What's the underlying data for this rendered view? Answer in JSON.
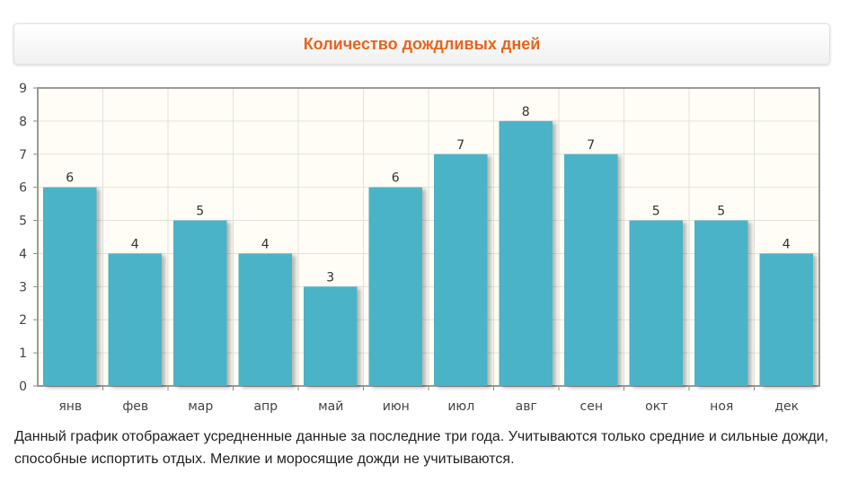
{
  "title": "Количество дождливых дней",
  "description": "Данный график отображает усредненные данные за последние три года. Учитываются только средние и сильные дожди, способные испортить отдых. Мелкие и моросящие дожди не учитываются.",
  "colors": {
    "bar": "#4bb3c8",
    "plot_bg": "#fffdf5",
    "grid": "#e2e2dc",
    "title": "#e8641e"
  },
  "chart_data": {
    "type": "bar",
    "categories": [
      "янв",
      "фев",
      "мар",
      "апр",
      "май",
      "июн",
      "июл",
      "авг",
      "сен",
      "окт",
      "ноя",
      "дек"
    ],
    "values": [
      6,
      4,
      5,
      4,
      3,
      6,
      7,
      8,
      7,
      5,
      5,
      4
    ],
    "ylim": [
      0,
      9
    ],
    "yticks": [
      0,
      1,
      2,
      3,
      4,
      5,
      6,
      7,
      8,
      9
    ],
    "grid": true,
    "data_labels": true
  }
}
